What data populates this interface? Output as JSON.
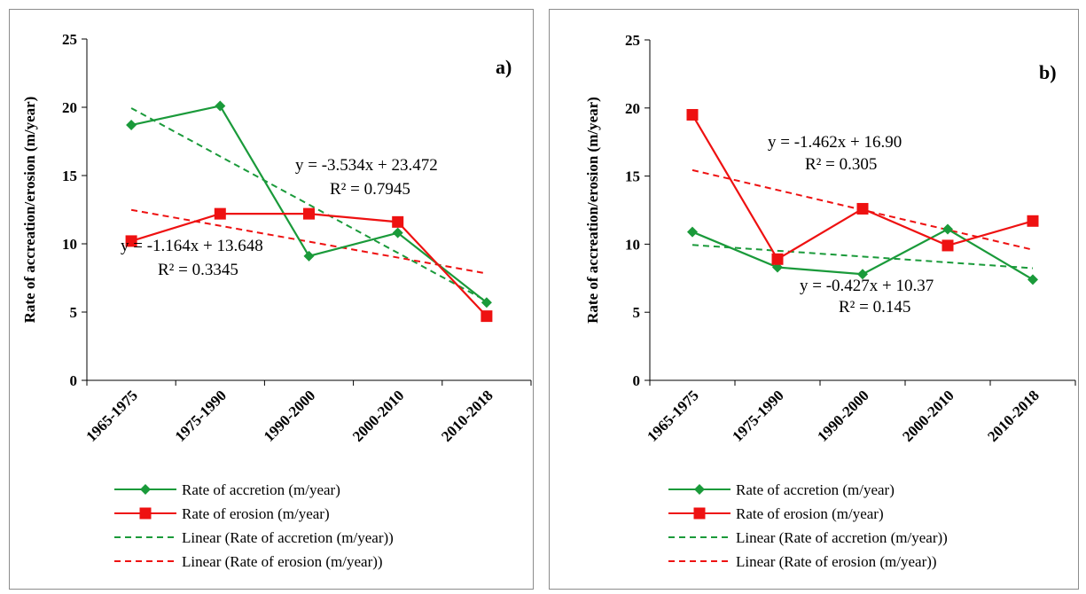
{
  "colors": {
    "accretion": "#1a9a3a",
    "erosion": "#ee1111",
    "axis": "#000000"
  },
  "chart_data": [
    {
      "type": "line",
      "panel_label": "a)",
      "categories": [
        "1965-1975",
        "1975-1990",
        "1990-2000",
        "2000-2010",
        "2010-2018"
      ],
      "ylabel": "Rate of accreation/erosion  (m/year)",
      "ylim": [
        0,
        25
      ],
      "yticks": [
        "0",
        "5",
        "10",
        "15",
        "20",
        "25"
      ],
      "grid": false,
      "legend_position": "bottom",
      "series": [
        {
          "name": "Rate of accretion (m/year)",
          "values": [
            18.7,
            20.1,
            9.1,
            10.8,
            5.7
          ],
          "marker": "diamond",
          "color": "#1a9a3a"
        },
        {
          "name": "Rate of erosion (m/year)",
          "values": [
            10.2,
            12.2,
            12.2,
            11.6,
            4.7
          ],
          "marker": "square",
          "color": "#ee1111"
        }
      ],
      "trendlines": [
        {
          "name": "Linear (Rate of accretion (m/year))",
          "slope": -3.534,
          "intercept": 23.472,
          "color": "#1a9a3a"
        },
        {
          "name": "Linear (Rate of erosion (m/year))",
          "slope": -1.164,
          "intercept": 13.648,
          "color": "#ee1111"
        }
      ],
      "annotations": [
        {
          "text": "y = -3.534x + 23.472"
        },
        {
          "text": "R² = 0.7945"
        },
        {
          "text": "y = -1.164x + 13.648"
        },
        {
          "text": "R² = 0.3345"
        }
      ]
    },
    {
      "type": "line",
      "panel_label": "b)",
      "categories": [
        "1965-1975",
        "1975-1990",
        "1990-2000",
        "2000-2010",
        "2010-2018"
      ],
      "ylabel": "Rate of accreation/erosion  (m/year)",
      "ylim": [
        0,
        25
      ],
      "yticks": [
        "0",
        "5",
        "10",
        "15",
        "20",
        "25"
      ],
      "grid": false,
      "legend_position": "bottom",
      "series": [
        {
          "name": "Rate of accretion (m/year)",
          "values": [
            10.9,
            8.3,
            7.8,
            11.1,
            7.4
          ],
          "marker": "diamond",
          "color": "#1a9a3a"
        },
        {
          "name": "Rate of erosion (m/year)",
          "values": [
            19.5,
            8.9,
            12.6,
            9.9,
            11.7
          ],
          "marker": "square",
          "color": "#ee1111"
        }
      ],
      "trendlines": [
        {
          "name": "Linear (Rate of accretion (m/year))",
          "slope": -0.427,
          "intercept": 10.37,
          "color": "#1a9a3a"
        },
        {
          "name": "Linear (Rate of erosion (m/year))",
          "slope": -1.462,
          "intercept": 16.9,
          "color": "#ee1111"
        }
      ],
      "annotations": [
        {
          "text": "y = -1.462x + 16.90"
        },
        {
          "text": "R² = 0.305"
        },
        {
          "text": "y = -0.427x + 10.37"
        },
        {
          "text": "R² = 0.145"
        }
      ]
    }
  ]
}
